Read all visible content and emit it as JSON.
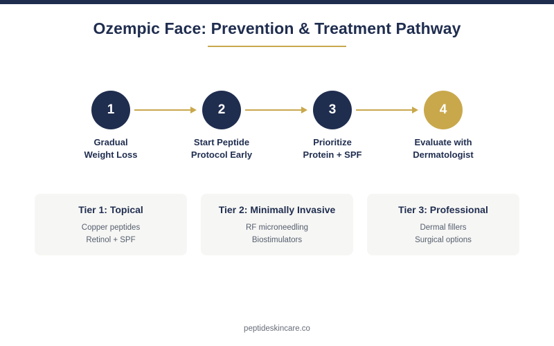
{
  "title": "Ozempic Face: Prevention & Treatment Pathway",
  "steps": [
    {
      "number": "1",
      "label_line1": "Gradual",
      "label_line2": "Weight Loss"
    },
    {
      "number": "2",
      "label_line1": "Start Peptide",
      "label_line2": "Protocol Early"
    },
    {
      "number": "3",
      "label_line1": "Prioritize",
      "label_line2": "Protein + SPF"
    },
    {
      "number": "4",
      "label_line1": "Evaluate with",
      "label_line2": "Dermatologist"
    }
  ],
  "tiers": [
    {
      "title": "Tier 1: Topical",
      "items": [
        "Copper peptides",
        "Retinol + SPF"
      ]
    },
    {
      "title": "Tier 2: Minimally Invasive",
      "items": [
        "RF microneedling",
        "Biostimulators"
      ]
    },
    {
      "title": "Tier 3: Professional",
      "items": [
        "Dermal fillers",
        "Surgical options"
      ]
    }
  ],
  "footer": "peptideskincare.co",
  "colors": {
    "navy": "#1f2d4f",
    "gold": "#c9a84c",
    "card_bg": "#f6f6f4"
  }
}
